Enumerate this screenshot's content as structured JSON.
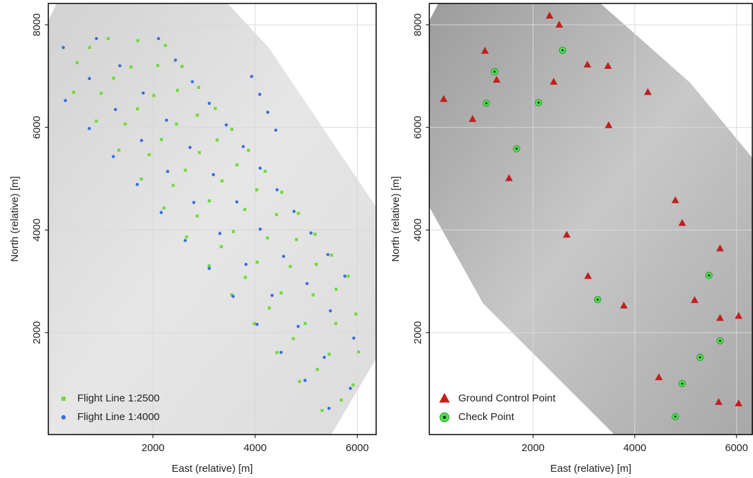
{
  "chart_data": [
    {
      "type": "scatter",
      "xlabel": "East (relative) [m]",
      "ylabel": "North (relative) [m]",
      "xlim": [
        -50,
        6370
      ],
      "ylim": [
        13,
        8416
      ],
      "xticks": [
        2000,
        4000,
        6000
      ],
      "yticks": [
        2000,
        4000,
        6000,
        8000
      ],
      "grid": true,
      "legend": "lower left",
      "series": [
        {
          "name": "Flight Line 1:2500",
          "color": "#72d93c",
          "marker": "square",
          "x": [
            446,
            888,
            1331,
            1773,
            2215,
            2658,
            3100,
            3542,
            3984,
            4427,
            4869,
            5311,
            514,
            985,
            1455,
            1926,
            2396,
            2867,
            3337,
            3808,
            4278,
            4749,
            5219,
            5689,
            757,
            1226,
            1696,
            2165,
            2634,
            3103,
            3573,
            4042,
            4511,
            4980,
            5450,
            5919,
            1122,
            1568,
            2014,
            2460,
            2906,
            3352,
            3797,
            4243,
            4689,
            5135,
            5581,
            6027,
            1703,
            2091,
            2479,
            2868,
            3256,
            3644,
            4032,
            4420,
            4809,
            5197,
            5585,
            5973,
            2243,
            2569,
            2894,
            3220,
            3545,
            3871,
            4196,
            4522,
            4847,
            5173,
            5498,
            5824
          ],
          "values": [
            6685,
            6121,
            5557,
            4994,
            4430,
            3866,
            3302,
            2738,
            2175,
            1611,
            1047,
            483,
            7262,
            6664,
            6066,
            5468,
            4870,
            4273,
            3675,
            3077,
            2479,
            1881,
            1283,
            685,
            7557,
            6959,
            6361,
            5763,
            5165,
            4568,
            3970,
            3372,
            2774,
            2176,
            1578,
            980,
            7732,
            7177,
            6621,
            6066,
            5511,
            4956,
            4400,
            3845,
            3290,
            2734,
            2179,
            1624,
            7691,
            7207,
            6722,
            6238,
            5753,
            5269,
            4784,
            4300,
            3815,
            3331,
            2846,
            2362,
            7597,
            7188,
            6779,
            6371,
            5962,
            5553,
            5144,
            4735,
            4326,
            3918,
            3509,
            3100
          ]
        },
        {
          "name": "Flight Line 1:4000",
          "color": "#3a6fdc",
          "marker": "circle",
          "x": [
            284,
            753,
            1223,
            1692,
            2161,
            2631,
            3100,
            3569,
            4038,
            4508,
            4977,
            5446,
            243,
            754,
            1265,
            1776,
            2287,
            2799,
            3310,
            3821,
            4332,
            4843,
            5354,
            5865,
            892,
            1350,
            1808,
            2266,
            2725,
            3183,
            3641,
            4099,
            4557,
            5016,
            5474,
            5932,
            2108,
            2440,
            2771,
            3103,
            3435,
            3767,
            4098,
            4430,
            4762,
            5094,
            5425,
            5757,
            3932,
            4090,
            4247,
            4405
          ],
          "values": [
            6523,
            5978,
            5432,
            4887,
            4341,
            3796,
            3251,
            2705,
            2160,
            1614,
            1069,
            524,
            7557,
            6953,
            6349,
            5745,
            5141,
            4537,
            3933,
            3329,
            2725,
            2121,
            1517,
            913,
            7732,
            7201,
            6670,
            6140,
            5609,
            5078,
            4547,
            4016,
            3486,
            2955,
            2424,
            1893,
            7732,
            7311,
            6890,
            6469,
            6048,
            5626,
            5205,
            4784,
            4363,
            3942,
            3521,
            3100,
            6993,
            6644,
            6295,
            5946
          ]
        }
      ]
    },
    {
      "type": "scatter",
      "xlabel": "East (relative) [m]",
      "ylabel": "North (relative) [m]",
      "xlim": [
        -40,
        6310
      ],
      "ylim": [
        13,
        8416
      ],
      "xticks": [
        2000,
        4000,
        6000
      ],
      "yticks": [
        2000,
        4000,
        6000,
        8000
      ],
      "grid": true,
      "legend": "lower left",
      "series": [
        {
          "name": "Ground Control Point",
          "color": "#c0201e",
          "marker": "triangle",
          "x": [
            243,
            1054,
            1284,
            811,
            1527,
            2324,
            2514,
            2405,
            3068,
            3473,
            4257,
            3486,
            4797,
            4932,
            2662,
            3081,
            3784,
            5176,
            5676,
            5676,
            6041,
            4473,
            5649,
            6041
          ],
          "values": [
            6550,
            7490,
            6926,
            6161,
            5007,
            8174,
            8000,
            6886,
            7221,
            7195,
            6685,
            6040,
            4577,
            4134,
            3906,
            3101,
            2523,
            2631,
            3638,
            2282,
            2322,
            1128,
            644,
            617
          ]
        },
        {
          "name": "Check Point",
          "color": "#4ee04e",
          "marker": "ring",
          "x": [
            2581,
            1243,
            1081,
            2108,
            1676,
            5459,
            3270,
            5676,
            5284,
            4932,
            4797
          ],
          "values": [
            7503,
            7087,
            6470,
            6483,
            5584,
            3114,
            2644,
            1839,
            1517,
            1007,
            362
          ]
        }
      ]
    }
  ]
}
